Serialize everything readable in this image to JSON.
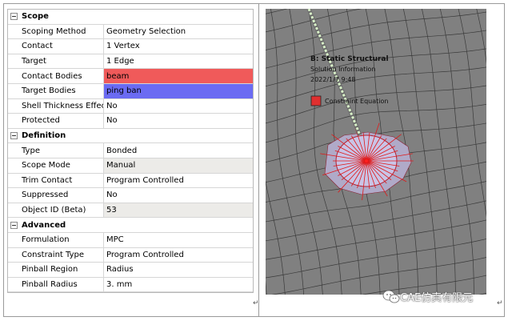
{
  "details": {
    "groups": [
      {
        "title": "Scope",
        "rows": [
          {
            "name": "Scoping Method",
            "value": "Geometry Selection"
          },
          {
            "name": "Contact",
            "value": "1 Vertex"
          },
          {
            "name": "Target",
            "value": "1 Edge"
          },
          {
            "name": "Contact Bodies",
            "value": "beam",
            "highlight": "#f05a5a"
          },
          {
            "name": "Target Bodies",
            "value": "ping ban",
            "highlight": "#6b6bf2"
          },
          {
            "name": "Shell Thickness Effect",
            "value": "No"
          },
          {
            "name": "Protected",
            "value": "No"
          }
        ]
      },
      {
        "title": "Definition",
        "rows": [
          {
            "name": "Type",
            "value": "Bonded"
          },
          {
            "name": "Scope Mode",
            "value": "Manual"
          },
          {
            "name": "Trim Contact",
            "value": "Program Controlled"
          },
          {
            "name": "Suppressed",
            "value": "No"
          },
          {
            "name": "Object ID (Beta)",
            "value": "53"
          }
        ]
      },
      {
        "title": "Advanced",
        "rows": [
          {
            "name": "Formulation",
            "value": "MPC"
          },
          {
            "name": "Constraint Type",
            "value": "Program Controlled"
          },
          {
            "name": "Pinball Region",
            "value": "Radius"
          },
          {
            "name": "Pinball Radius",
            "value": "3. mm"
          }
        ]
      }
    ]
  },
  "viewport": {
    "analysis_title": "B: Static Structural",
    "subtitle": "Solution Information",
    "timestamp": "2022/1/7 9:48",
    "legend_label": "Constraint Equation",
    "legend_color": "#e03030",
    "mesh_color": "#808080",
    "spider_color": "#e01818",
    "disk_color": "#c9c4e6"
  },
  "paragraph_mark": "↵",
  "watermark": {
    "text": "CAE仿真有限元",
    "icon": "wechat-icon"
  }
}
